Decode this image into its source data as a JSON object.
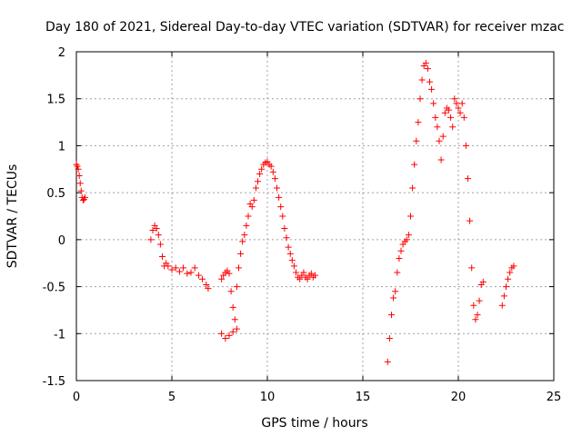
{
  "chart_data": {
    "type": "scatter",
    "title": "Day 180 of 2021, Sidereal Day-to-day VTEC variation (SDTVAR) for receiver mzac",
    "xlabel": "GPS time / hours",
    "ylabel": "SDTVAR / TECUs",
    "xlim": [
      0,
      25
    ],
    "ylim": [
      -1.5,
      2
    ],
    "xticks": [
      0,
      5,
      10,
      15,
      20,
      25
    ],
    "xtick_labels": [
      "0",
      "5",
      "10",
      "15",
      "20",
      "25"
    ],
    "yticks": [
      -1.5,
      -1,
      -0.5,
      0,
      0.5,
      1,
      1.5,
      2
    ],
    "ytick_labels": [
      "-1.5",
      "-1",
      "-0.5",
      "0",
      "0.5",
      "1",
      "1.5",
      "2"
    ],
    "grid": true,
    "marker": "+",
    "series": [
      {
        "name": "SDTVAR",
        "color": "#ff0000",
        "x": [
          0.0,
          0.05,
          0.1,
          0.15,
          0.2,
          0.25,
          0.3,
          0.35,
          0.4,
          0.45,
          3.9,
          4.0,
          4.1,
          4.2,
          4.3,
          4.4,
          4.5,
          4.6,
          4.7,
          4.8,
          5.0,
          5.2,
          5.4,
          5.6,
          5.8,
          6.0,
          6.2,
          6.4,
          6.6,
          6.8,
          6.9,
          7.6,
          7.7,
          7.8,
          7.9,
          8.0,
          8.1,
          8.2,
          8.3,
          8.4,
          8.5,
          8.6,
          8.7,
          8.8,
          8.9,
          9.0,
          9.1,
          9.2,
          9.3,
          9.4,
          9.5,
          9.6,
          9.7,
          9.8,
          9.9,
          10.0,
          10.1,
          10.2,
          10.3,
          10.4,
          10.5,
          10.6,
          10.7,
          10.8,
          10.9,
          11.0,
          11.1,
          11.2,
          11.3,
          11.4,
          11.5,
          11.6,
          11.7,
          11.8,
          11.9,
          12.0,
          12.1,
          12.2,
          12.3,
          12.4,
          12.5,
          7.6,
          7.8,
          8.0,
          8.2,
          8.4,
          16.3,
          16.4,
          16.5,
          16.6,
          16.7,
          16.8,
          16.9,
          17.0,
          17.1,
          17.2,
          17.3,
          17.4,
          17.5,
          17.6,
          17.7,
          17.8,
          17.9,
          18.0,
          18.1,
          18.2,
          18.3,
          18.4,
          18.5,
          18.6,
          18.7,
          18.8,
          18.9,
          19.0,
          19.1,
          19.2,
          19.3,
          19.4,
          19.5,
          19.6,
          19.7,
          19.8,
          19.9,
          20.0,
          20.1,
          20.2,
          20.3,
          20.4,
          20.5,
          20.6,
          20.7,
          20.8,
          20.9,
          21.0,
          21.1,
          21.2,
          21.3,
          22.3,
          22.4,
          22.5,
          22.6,
          22.7,
          22.8,
          22.9
        ],
        "y": [
          0.8,
          0.78,
          0.75,
          0.68,
          0.6,
          0.52,
          0.45,
          0.42,
          0.43,
          0.45,
          0.0,
          0.1,
          0.15,
          0.12,
          0.05,
          -0.05,
          -0.18,
          -0.28,
          -0.25,
          -0.28,
          -0.32,
          -0.3,
          -0.34,
          -0.3,
          -0.36,
          -0.35,
          -0.3,
          -0.38,
          -0.42,
          -0.48,
          -0.52,
          -0.42,
          -0.38,
          -0.35,
          -0.33,
          -0.36,
          -0.55,
          -0.72,
          -0.85,
          -0.5,
          -0.3,
          -0.15,
          -0.02,
          0.05,
          0.15,
          0.25,
          0.38,
          0.35,
          0.42,
          0.55,
          0.62,
          0.7,
          0.75,
          0.8,
          0.82,
          0.83,
          0.8,
          0.78,
          0.72,
          0.65,
          0.55,
          0.45,
          0.35,
          0.25,
          0.12,
          0.02,
          -0.08,
          -0.15,
          -0.22,
          -0.28,
          -0.35,
          -0.4,
          -0.42,
          -0.38,
          -0.35,
          -0.4,
          -0.42,
          -0.38,
          -0.36,
          -0.4,
          -0.38,
          -1.0,
          -1.05,
          -1.02,
          -0.98,
          -0.95,
          -1.3,
          -1.05,
          -0.8,
          -0.62,
          -0.55,
          -0.35,
          -0.2,
          -0.12,
          -0.05,
          -0.02,
          0.0,
          0.05,
          0.25,
          0.55,
          0.8,
          1.05,
          1.25,
          1.5,
          1.7,
          1.85,
          1.88,
          1.82,
          1.68,
          1.6,
          1.45,
          1.3,
          1.2,
          1.05,
          0.85,
          1.1,
          1.35,
          1.4,
          1.38,
          1.3,
          1.2,
          1.5,
          1.45,
          1.4,
          1.35,
          1.45,
          1.3,
          1.0,
          0.65,
          0.2,
          -0.3,
          -0.7,
          -0.85,
          -0.8,
          -0.65,
          -0.48,
          -0.45,
          -0.7,
          -0.6,
          -0.5,
          -0.42,
          -0.35,
          -0.3,
          -0.28
        ]
      }
    ]
  }
}
